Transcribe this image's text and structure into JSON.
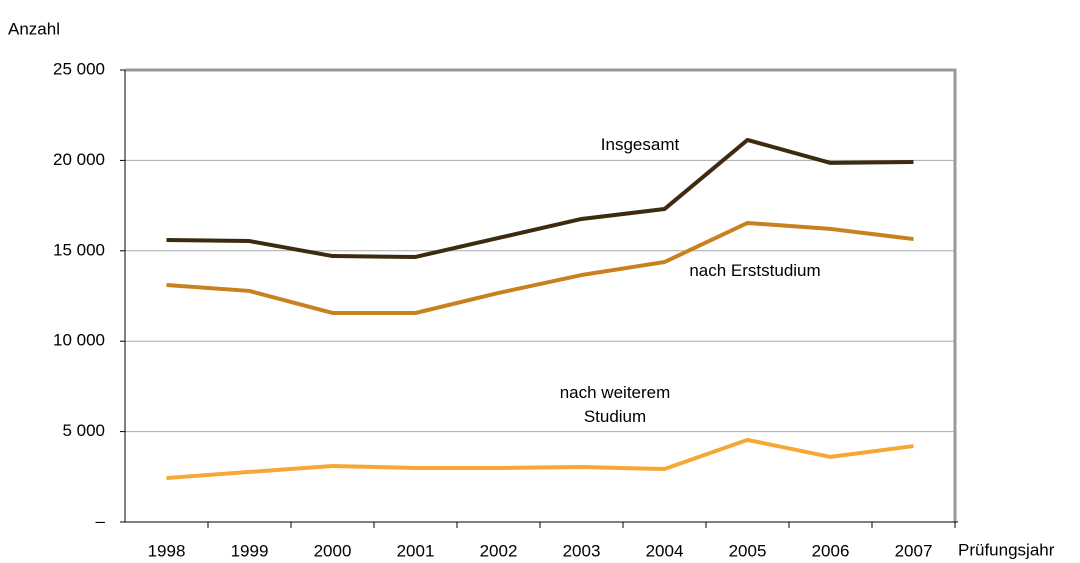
{
  "chart_data": {
    "type": "line",
    "y_label": "Anzahl",
    "x_label": "Prüfungsjahr",
    "categories": [
      "1998",
      "1999",
      "2000",
      "2001",
      "2002",
      "2003",
      "2004",
      "2005",
      "2006",
      "2007"
    ],
    "series": [
      {
        "name": "Insgesamt",
        "color": "#3d2a0f",
        "values": [
          15600,
          15540,
          14710,
          14660,
          15710,
          16760,
          17310,
          21130,
          19860,
          19910
        ]
      },
      {
        "name": "nach Erststudium",
        "color": "#c9801e",
        "values": [
          13110,
          12780,
          11560,
          11560,
          12670,
          13660,
          14380,
          16540,
          16210,
          15650
        ]
      },
      {
        "name": "nach weiterem Studium",
        "color": "#f5a833",
        "values": [
          2430,
          2770,
          3100,
          2990,
          2990,
          3040,
          2930,
          4540,
          3600,
          4200
        ]
      }
    ],
    "ylim": [
      0,
      25000
    ],
    "yticks": [
      {
        "value": 0,
        "label": "–"
      },
      {
        "value": 5000,
        "label": "5 000"
      },
      {
        "value": 10000,
        "label": "10 000"
      },
      {
        "value": 15000,
        "label": "15 000"
      },
      {
        "value": 20000,
        "label": "20 000"
      },
      {
        "value": 25000,
        "label": "25 000"
      }
    ],
    "grid": true
  }
}
